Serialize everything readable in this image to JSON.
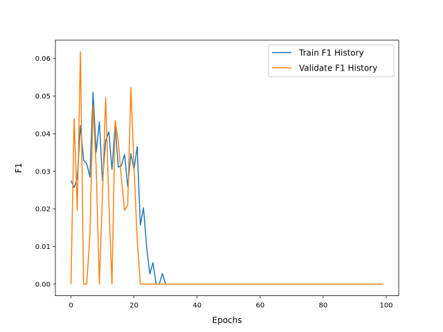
{
  "chart_data": {
    "type": "line",
    "title": "",
    "xlabel": "Epochs",
    "ylabel": "F1",
    "xlim": [
      -4.95,
      103.95
    ],
    "ylim": [
      -0.0031,
      0.0649
    ],
    "xticks": [
      0,
      20,
      40,
      60,
      80,
      100
    ],
    "xtick_labels": [
      "0",
      "20",
      "40",
      "60",
      "80",
      "100"
    ],
    "yticks": [
      0.0,
      0.01,
      0.02,
      0.03,
      0.04,
      0.05,
      0.06
    ],
    "ytick_labels": [
      "0.00",
      "0.01",
      "0.02",
      "0.03",
      "0.04",
      "0.05",
      "0.06"
    ],
    "grid": false,
    "legend_position": "top-right",
    "x": [
      0,
      1,
      2,
      3,
      4,
      5,
      6,
      7,
      8,
      9,
      10,
      11,
      12,
      13,
      14,
      15,
      16,
      17,
      18,
      19,
      20,
      21,
      22,
      23,
      24,
      25,
      26,
      27,
      28,
      29,
      30,
      31,
      32,
      33,
      34,
      35,
      36,
      37,
      38,
      39,
      40,
      41,
      42,
      43,
      44,
      45,
      46,
      47,
      48,
      49,
      50,
      51,
      52,
      53,
      54,
      55,
      56,
      57,
      58,
      59,
      60,
      61,
      62,
      63,
      64,
      65,
      66,
      67,
      68,
      69,
      70,
      71,
      72,
      73,
      74,
      75,
      76,
      77,
      78,
      79,
      80,
      81,
      82,
      83,
      84,
      85,
      86,
      87,
      88,
      89,
      90,
      91,
      92,
      93,
      94,
      95,
      96,
      97,
      98,
      99
    ],
    "series": [
      {
        "name": "Train F1 History",
        "color": "#1f77b4",
        "values": [
          0.0275,
          0.0257,
          0.0283,
          0.0422,
          0.033,
          0.032,
          0.0285,
          0.051,
          0.0351,
          0.0432,
          0.0275,
          0.0381,
          0.0405,
          0.0305,
          0.0425,
          0.0311,
          0.0315,
          0.0345,
          0.0259,
          0.0347,
          0.0305,
          0.0366,
          0.0157,
          0.0203,
          0.0098,
          0.0027,
          0.0057,
          0.0,
          0.0,
          0.0028,
          0.0,
          0,
          0,
          0,
          0,
          0,
          0,
          0,
          0,
          0,
          0,
          0,
          0,
          0,
          0,
          0,
          0,
          0,
          0,
          0,
          0,
          0,
          0,
          0,
          0,
          0,
          0,
          0,
          0,
          0,
          0,
          0,
          0,
          0,
          0,
          0,
          0,
          0,
          0,
          0,
          0,
          0,
          0,
          0,
          0,
          0,
          0,
          0,
          0,
          0,
          0,
          0,
          0,
          0,
          0,
          0,
          0,
          0,
          0,
          0,
          0,
          0,
          0,
          0,
          0,
          0,
          0,
          0,
          0,
          0
        ]
      },
      {
        "name": "Validate F1 History",
        "color": "#ff7f0e",
        "values": [
          0.0,
          0.044,
          0.0197,
          0.0618,
          0.0,
          0.0,
          0.013,
          0.0475,
          0.031,
          0.0,
          0.024,
          0.0496,
          0.022,
          0.0,
          0.0435,
          0.038,
          0.028,
          0.0196,
          0.021,
          0.0523,
          0.031,
          0.012,
          0.0,
          0,
          0,
          0,
          0,
          0,
          0,
          0,
          0,
          0,
          0,
          0,
          0,
          0,
          0,
          0,
          0,
          0,
          0,
          0,
          0,
          0,
          0,
          0,
          0,
          0,
          0,
          0,
          0,
          0,
          0,
          0,
          0,
          0,
          0,
          0,
          0,
          0,
          0,
          0,
          0,
          0,
          0,
          0,
          0,
          0,
          0,
          0,
          0,
          0,
          0,
          0,
          0,
          0,
          0,
          0,
          0,
          0,
          0,
          0,
          0,
          0,
          0,
          0,
          0,
          0,
          0,
          0,
          0,
          0,
          0,
          0,
          0,
          0,
          0,
          0,
          0,
          0
        ]
      }
    ]
  }
}
